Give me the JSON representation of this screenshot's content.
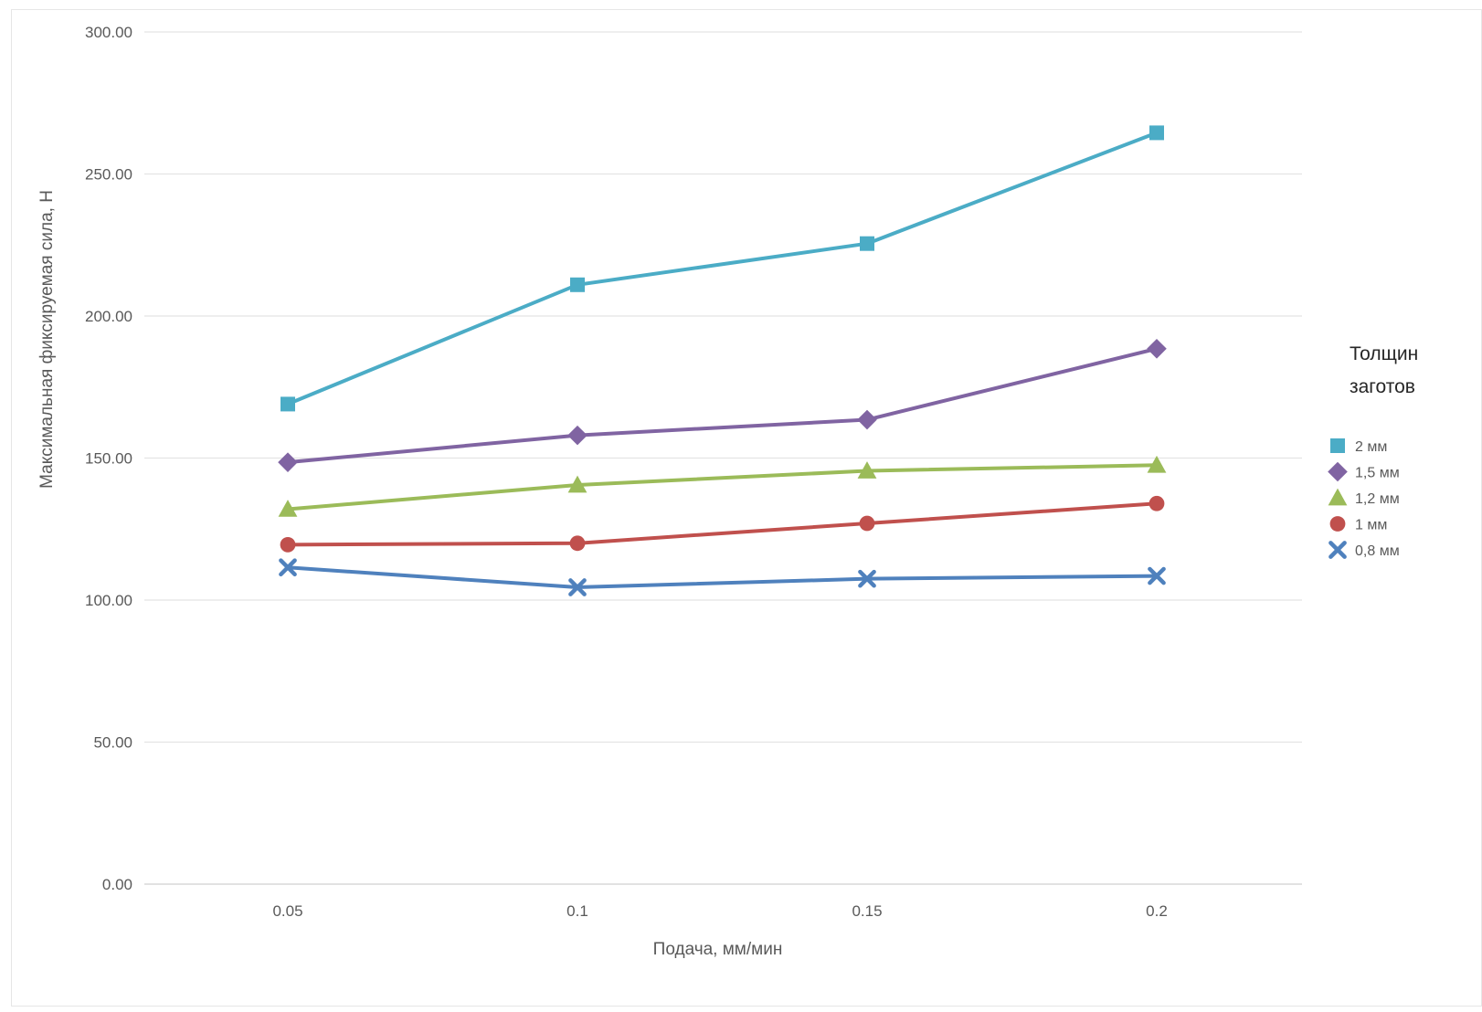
{
  "chart_data": {
    "type": "line",
    "title": "",
    "xlabel": "Подача, мм/мин",
    "ylabel": "Максимальная фиксируемая сила, Н",
    "x": [
      0.05,
      0.1,
      0.15,
      0.2
    ],
    "x_tick_labels": [
      "0.05",
      "0.1",
      "0.15",
      "0.2"
    ],
    "ylim": [
      0,
      300
    ],
    "y_ticks": [
      0,
      50,
      100,
      150,
      200,
      250,
      300
    ],
    "y_tick_labels": [
      "0.00",
      "50.00",
      "100.00",
      "150.00",
      "200.00",
      "250.00",
      "300.00"
    ],
    "grid": true,
    "legend": {
      "placement": "right",
      "title_lines": [
        "Толщин",
        "заготов"
      ]
    },
    "series": [
      {
        "name": "2 мм",
        "values": [
          169,
          211,
          225.5,
          264.5
        ],
        "color": "#4bacc6",
        "marker": "square"
      },
      {
        "name": "1,5 мм",
        "values": [
          148.5,
          158,
          163.5,
          188.5
        ],
        "color": "#8064a2",
        "marker": "diamond"
      },
      {
        "name": "1,2 мм",
        "values": [
          132,
          140.5,
          145.5,
          147.5
        ],
        "color": "#9bbb59",
        "marker": "triangle"
      },
      {
        "name": "1 мм",
        "values": [
          119.5,
          120,
          127,
          134
        ],
        "color": "#c0504d",
        "marker": "circle"
      },
      {
        "name": "0,8 мм",
        "values": [
          111.5,
          104.5,
          107.5,
          108.5
        ],
        "color": "#4f81bd",
        "marker": "x"
      }
    ]
  }
}
